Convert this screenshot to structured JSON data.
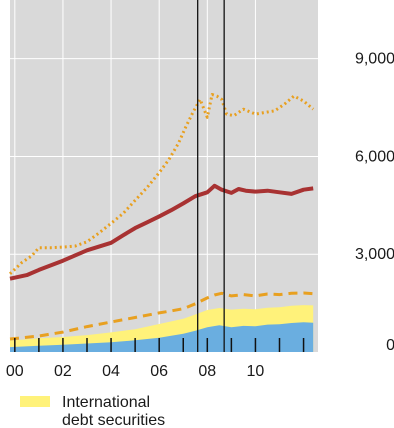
{
  "chart_data": {
    "type": "line",
    "title": "",
    "xlabel": "",
    "ylabel": "",
    "xlim": [
      1999.8,
      2012.6
    ],
    "ylim": [
      0,
      10800
    ],
    "grid": true,
    "legend": "bottom-left",
    "colors": {
      "background": "#d9d9d9",
      "grid": "#ffffff",
      "blue": "#6aaee0",
      "yellow": "#fff27a",
      "red": "#a83232",
      "orange": "#e8a020",
      "vline": "#111111"
    },
    "y_ticks": [
      {
        "value": 0,
        "label": "0"
      },
      {
        "value": 3000,
        "label": "3,000"
      },
      {
        "value": 6000,
        "label": "6,000"
      },
      {
        "value": 9000,
        "label": "9,000"
      }
    ],
    "x_ticks": [
      {
        "value": 2000,
        "label": "00"
      },
      {
        "value": 2002,
        "label": "02"
      },
      {
        "value": 2004,
        "label": "04"
      },
      {
        "value": 2006,
        "label": "06"
      },
      {
        "value": 2008,
        "label": "08"
      },
      {
        "value": 2010,
        "label": "10"
      }
    ],
    "vertical_lines": [
      2007.6,
      2008.7
    ],
    "series": [
      {
        "name": "",
        "style": "area-blue",
        "x": [
          1999.8,
          2001,
          2002,
          2003,
          2004,
          2005,
          2006,
          2007,
          2007.5,
          2008,
          2008.5,
          2009,
          2009.5,
          2010,
          2010.5,
          2011,
          2011.5,
          2012,
          2012.4
        ],
        "values": [
          150,
          190,
          220,
          260,
          300,
          360,
          440,
          560,
          650,
          760,
          820,
          760,
          800,
          790,
          840,
          850,
          890,
          910,
          900
        ]
      },
      {
        "name": "International debt securities",
        "style": "area-yellow",
        "x": [
          1999.8,
          2001,
          2002,
          2003,
          2004,
          2005,
          2006,
          2007,
          2007.5,
          2008,
          2008.5,
          2009,
          2009.5,
          2010,
          2010.5,
          2011,
          2011.5,
          2012,
          2012.4
        ],
        "values": [
          350,
          420,
          460,
          520,
          600,
          700,
          860,
          1020,
          1150,
          1290,
          1350,
          1300,
          1330,
          1310,
          1360,
          1370,
          1420,
          1440,
          1430
        ]
      },
      {
        "name": "",
        "style": "dashed-orange",
        "x": [
          1999.8,
          2001,
          2002,
          2003,
          2004,
          2005,
          2006,
          2006.5,
          2007,
          2007.5,
          2008,
          2008.3,
          2008.6,
          2009,
          2009.5,
          2010,
          2010.5,
          2011,
          2011.5,
          2012,
          2012.4
        ],
        "values": [
          400,
          490,
          610,
          780,
          920,
          1060,
          1200,
          1260,
          1330,
          1480,
          1660,
          1750,
          1800,
          1720,
          1760,
          1720,
          1780,
          1760,
          1800,
          1810,
          1790
        ]
      },
      {
        "name": "",
        "style": "solid-red",
        "x": [
          1999.8,
          2000.5,
          2001,
          2002,
          2003,
          2004,
          2004.5,
          2005,
          2005.5,
          2006,
          2006.5,
          2007,
          2007.5,
          2008,
          2008.3,
          2008.6,
          2009,
          2009.3,
          2009.6,
          2010,
          2010.5,
          2011,
          2011.5,
          2012,
          2012.4
        ],
        "values": [
          2250,
          2360,
          2520,
          2800,
          3120,
          3350,
          3580,
          3800,
          3980,
          4160,
          4350,
          4560,
          4780,
          4900,
          5100,
          4980,
          4880,
          5000,
          4950,
          4920,
          4950,
          4900,
          4850,
          4980,
          5020
        ]
      },
      {
        "name": "",
        "style": "dotted-orange",
        "x": [
          1999.8,
          2000.3,
          2000.7,
          2001,
          2001.5,
          2002,
          2002.5,
          2003,
          2003.5,
          2004,
          2004.5,
          2005,
          2005.5,
          2006,
          2006.4,
          2006.8,
          2007.1,
          2007.4,
          2007.7,
          2008,
          2008.2,
          2008.4,
          2008.6,
          2008.8,
          2009.1,
          2009.5,
          2010,
          2010.4,
          2010.8,
          2011.2,
          2011.6,
          2012,
          2012.4
        ],
        "values": [
          2400,
          2750,
          2950,
          3200,
          3200,
          3220,
          3250,
          3380,
          3650,
          3950,
          4250,
          4650,
          5050,
          5500,
          5900,
          6400,
          6900,
          7350,
          7750,
          7200,
          7900,
          7850,
          7750,
          7300,
          7250,
          7450,
          7300,
          7350,
          7400,
          7600,
          7850,
          7700,
          7450
        ]
      }
    ]
  }
}
